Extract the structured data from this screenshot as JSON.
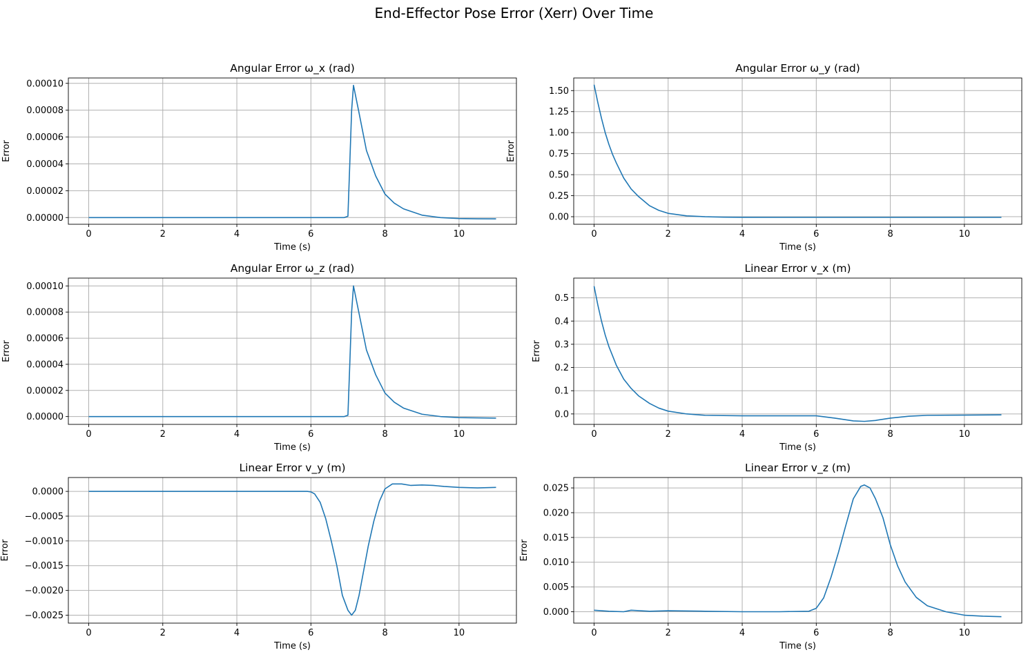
{
  "figure": {
    "title": "End-Effector Pose Error (Xerr) Over Time"
  },
  "colors": {
    "line": "#1f77b4",
    "grid": "#b0b0b0",
    "axes": "#000000"
  },
  "chart_data": [
    {
      "type": "line",
      "title": "Angular Error ω_x (rad)",
      "xlabel": "Time (s)",
      "ylabel": "Error",
      "grid": true,
      "xlim": [
        -0.55,
        11.55
      ],
      "ylim": [
        -5e-06,
        0.000104
      ],
      "xticks": [
        0,
        2,
        4,
        6,
        8,
        10
      ],
      "yticks": [
        0,
        2e-05,
        4e-05,
        6e-05,
        8e-05,
        0.0001
      ],
      "ytick_labels": [
        "0.00000",
        "0.00002",
        "0.00004",
        "0.00006",
        "0.00008",
        "0.00010"
      ],
      "series": [
        {
          "x": [
            0,
            1,
            2,
            3,
            4,
            5,
            6,
            6.9,
            7.0,
            7.05,
            7.1,
            7.15,
            7.3,
            7.5,
            7.75,
            8.0,
            8.25,
            8.5,
            9.0,
            9.5,
            10.0,
            10.5,
            11.0
          ],
          "y": [
            0,
            0,
            0,
            0,
            0,
            0,
            0,
            0,
            1e-06,
            4e-05,
            8e-05,
            9.85e-05,
            7.8e-05,
            5e-05,
            3.1e-05,
            1.75e-05,
            1.08e-05,
            6.5e-06,
            1.8e-06,
            0,
            -7e-07,
            -9e-07,
            -1e-06
          ]
        }
      ]
    },
    {
      "type": "line",
      "title": "Angular Error ω_y (rad)",
      "xlabel": "Time (s)",
      "ylabel": "Error",
      "grid": true,
      "xlim": [
        -0.55,
        11.55
      ],
      "ylim": [
        -0.09,
        1.65
      ],
      "xticks": [
        0,
        2,
        4,
        6,
        8,
        10
      ],
      "yticks": [
        0,
        0.25,
        0.5,
        0.75,
        1.0,
        1.25,
        1.5
      ],
      "ytick_labels": [
        "0.00",
        "0.25",
        "0.50",
        "0.75",
        "1.00",
        "1.25",
        "1.50"
      ],
      "series": [
        {
          "x": [
            0,
            0.1,
            0.2,
            0.3,
            0.4,
            0.5,
            0.6,
            0.8,
            1.0,
            1.2,
            1.5,
            1.75,
            2.0,
            2.5,
            3.0,
            3.5,
            4.0,
            5.0,
            6.0,
            7.0,
            8.0,
            9.0,
            10.0,
            11.0
          ],
          "y": [
            1.57,
            1.36,
            1.17,
            1.0,
            0.86,
            0.74,
            0.64,
            0.46,
            0.33,
            0.24,
            0.13,
            0.075,
            0.04,
            0.01,
            0.0,
            -0.005,
            -0.007,
            -0.008,
            -0.008,
            -0.008,
            -0.008,
            -0.008,
            -0.008,
            -0.008
          ]
        }
      ]
    },
    {
      "type": "line",
      "title": "Angular Error ω_z (rad)",
      "xlabel": "Time (s)",
      "ylabel": "Error",
      "grid": true,
      "xlim": [
        -0.55,
        11.55
      ],
      "ylim": [
        -6e-06,
        0.000106
      ],
      "xticks": [
        0,
        2,
        4,
        6,
        8,
        10
      ],
      "yticks": [
        0,
        2e-05,
        4e-05,
        6e-05,
        8e-05,
        0.0001
      ],
      "ytick_labels": [
        "0.00000",
        "0.00002",
        "0.00004",
        "0.00006",
        "0.00008",
        "0.00010"
      ],
      "series": [
        {
          "x": [
            0,
            1,
            2,
            3,
            4,
            5,
            6,
            6.9,
            7.0,
            7.05,
            7.1,
            7.15,
            7.3,
            7.5,
            7.75,
            8.0,
            8.25,
            8.5,
            9.0,
            9.5,
            10.0,
            10.5,
            11.0
          ],
          "y": [
            0,
            0,
            0,
            0,
            0,
            0,
            0,
            0,
            1e-06,
            4e-05,
            8e-05,
            0.0001,
            7.9e-05,
            5.1e-05,
            3.2e-05,
            1.8e-05,
            1.1e-05,
            6.5e-06,
            1.8e-06,
            0,
            -8e-07,
            -1e-06,
            -1.2e-06
          ]
        }
      ]
    },
    {
      "type": "line",
      "title": "Linear Error v_x (m)",
      "xlabel": "Time (s)",
      "ylabel": "Error",
      "grid": true,
      "xlim": [
        -0.55,
        11.55
      ],
      "ylim": [
        -0.045,
        0.585
      ],
      "xticks": [
        0,
        2,
        4,
        6,
        8,
        10
      ],
      "yticks": [
        0,
        0.1,
        0.2,
        0.3,
        0.4,
        0.5
      ],
      "ytick_labels": [
        "0.0",
        "0.1",
        "0.2",
        "0.3",
        "0.4",
        "0.5"
      ],
      "series": [
        {
          "x": [
            0,
            0.1,
            0.2,
            0.3,
            0.4,
            0.5,
            0.6,
            0.8,
            1.0,
            1.2,
            1.5,
            1.75,
            2.0,
            2.5,
            3.0,
            4.0,
            5.0,
            6.0,
            6.5,
            7.0,
            7.3,
            7.6,
            8.0,
            8.5,
            9.0,
            10.0,
            11.0
          ],
          "y": [
            0.55,
            0.47,
            0.4,
            0.34,
            0.29,
            0.25,
            0.21,
            0.15,
            0.11,
            0.078,
            0.045,
            0.025,
            0.012,
            0.0,
            -0.006,
            -0.008,
            -0.008,
            -0.008,
            -0.018,
            -0.03,
            -0.032,
            -0.028,
            -0.018,
            -0.01,
            -0.006,
            -0.005,
            -0.004
          ]
        }
      ]
    },
    {
      "type": "line",
      "title": "Linear Error v_y (m)",
      "xlabel": "Time (s)",
      "ylabel": "Error",
      "grid": true,
      "xlim": [
        -0.55,
        11.55
      ],
      "ylim": [
        -0.00266,
        0.00028
      ],
      "xticks": [
        0,
        2,
        4,
        6,
        8,
        10
      ],
      "yticks": [
        0,
        -0.0005,
        -0.001,
        -0.0015,
        -0.002,
        -0.0025
      ],
      "ytick_labels": [
        "0.0000",
        "−0.0005",
        "−0.0010",
        "−0.0015",
        "−0.0020",
        "−0.0025"
      ],
      "series": [
        {
          "x": [
            0,
            1,
            2,
            3,
            4,
            5,
            5.7,
            5.9,
            6.0,
            6.1,
            6.25,
            6.4,
            6.55,
            6.7,
            6.85,
            7.0,
            7.1,
            7.2,
            7.3,
            7.4,
            7.55,
            7.7,
            7.85,
            8.0,
            8.2,
            8.45,
            8.7,
            9.0,
            9.3,
            9.6,
            10.0,
            10.5,
            11.0
          ],
          "y": [
            0,
            0,
            0,
            0,
            0,
            0,
            0,
            0,
            -1e-05,
            -5e-05,
            -0.00022,
            -0.00055,
            -0.001,
            -0.0015,
            -0.0021,
            -0.0024,
            -0.0025,
            -0.0024,
            -0.0021,
            -0.0017,
            -0.0011,
            -0.0006,
            -0.0002,
            5e-05,
            0.00015,
            0.00015,
            0.00012,
            0.00013,
            0.00012,
            0.0001,
            8e-05,
            7e-05,
            8e-05
          ]
        }
      ]
    },
    {
      "type": "line",
      "title": "Linear Error v_z (m)",
      "xlabel": "Time (s)",
      "ylabel": "Error",
      "grid": true,
      "xlim": [
        -0.55,
        11.55
      ],
      "ylim": [
        -0.0023,
        0.0271
      ],
      "xticks": [
        0,
        2,
        4,
        6,
        8,
        10
      ],
      "yticks": [
        0,
        0.005,
        0.01,
        0.015,
        0.02,
        0.025
      ],
      "ytick_labels": [
        "0.000",
        "0.005",
        "0.010",
        "0.015",
        "0.020",
        "0.025"
      ],
      "series": [
        {
          "x": [
            0,
            0.4,
            0.8,
            1.0,
            1.5,
            2.0,
            3.0,
            4.0,
            5.0,
            5.8,
            6.0,
            6.2,
            6.4,
            6.6,
            6.8,
            7.0,
            7.2,
            7.3,
            7.45,
            7.6,
            7.8,
            8.0,
            8.2,
            8.4,
            8.7,
            9.0,
            9.5,
            10.0,
            10.5,
            11.0
          ],
          "y": [
            0.0003,
            0.0001,
            0.0,
            0.0003,
            0.0001,
            0.0002,
            0.0001,
            0.0,
            0.0,
            0.0001,
            0.0007,
            0.0028,
            0.007,
            0.012,
            0.0175,
            0.0228,
            0.0253,
            0.0256,
            0.025,
            0.0228,
            0.019,
            0.0135,
            0.0092,
            0.006,
            0.0029,
            0.0012,
            0.0,
            -0.0007,
            -0.0009,
            -0.001
          ]
        }
      ]
    }
  ]
}
